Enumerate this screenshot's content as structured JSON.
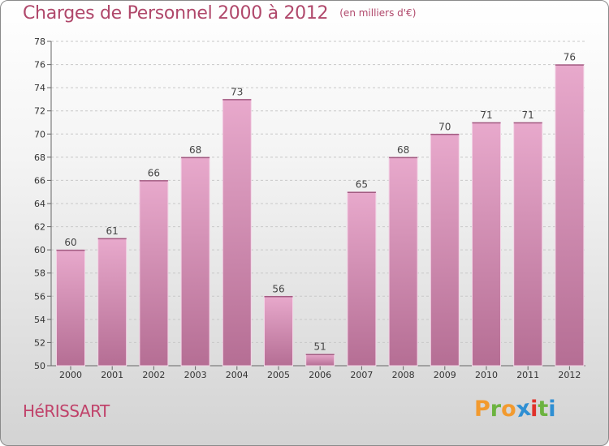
{
  "header": {
    "title": "Charges de Personnel 2000 à 2012",
    "subtitle": "(en milliers d'€)"
  },
  "footer": {
    "commune": "HéRISSART",
    "logo_letters": [
      "P",
      "r",
      "o",
      "x",
      "i",
      "t",
      "i"
    ]
  },
  "colors": {
    "title": "#b0486b",
    "bar_top": "#e8a9cc",
    "bar_bottom": "#b56e94",
    "bar_edge": "#f3d4e6",
    "logo": [
      "#f29a2e",
      "#6cb33f",
      "#f29a2e",
      "#2f8fd3",
      "#e0312a",
      "#6cb33f",
      "#2f8fd3"
    ]
  },
  "chart_data": {
    "type": "bar",
    "title": "Charges de Personnel 2000 à 2012",
    "subtitle": "(en milliers d'€)",
    "categories": [
      "2000",
      "2001",
      "2002",
      "2003",
      "2004",
      "2005",
      "2006",
      "2007",
      "2008",
      "2009",
      "2010",
      "2011",
      "2012"
    ],
    "values": [
      60,
      61,
      66,
      68,
      73,
      56,
      51,
      65,
      68,
      70,
      71,
      71,
      76
    ],
    "ylim": [
      50,
      78
    ],
    "yticks": [
      50,
      52,
      54,
      56,
      58,
      60,
      62,
      64,
      66,
      68,
      70,
      72,
      74,
      76,
      78
    ],
    "grid": "horizontal dashed",
    "legend": "none"
  }
}
